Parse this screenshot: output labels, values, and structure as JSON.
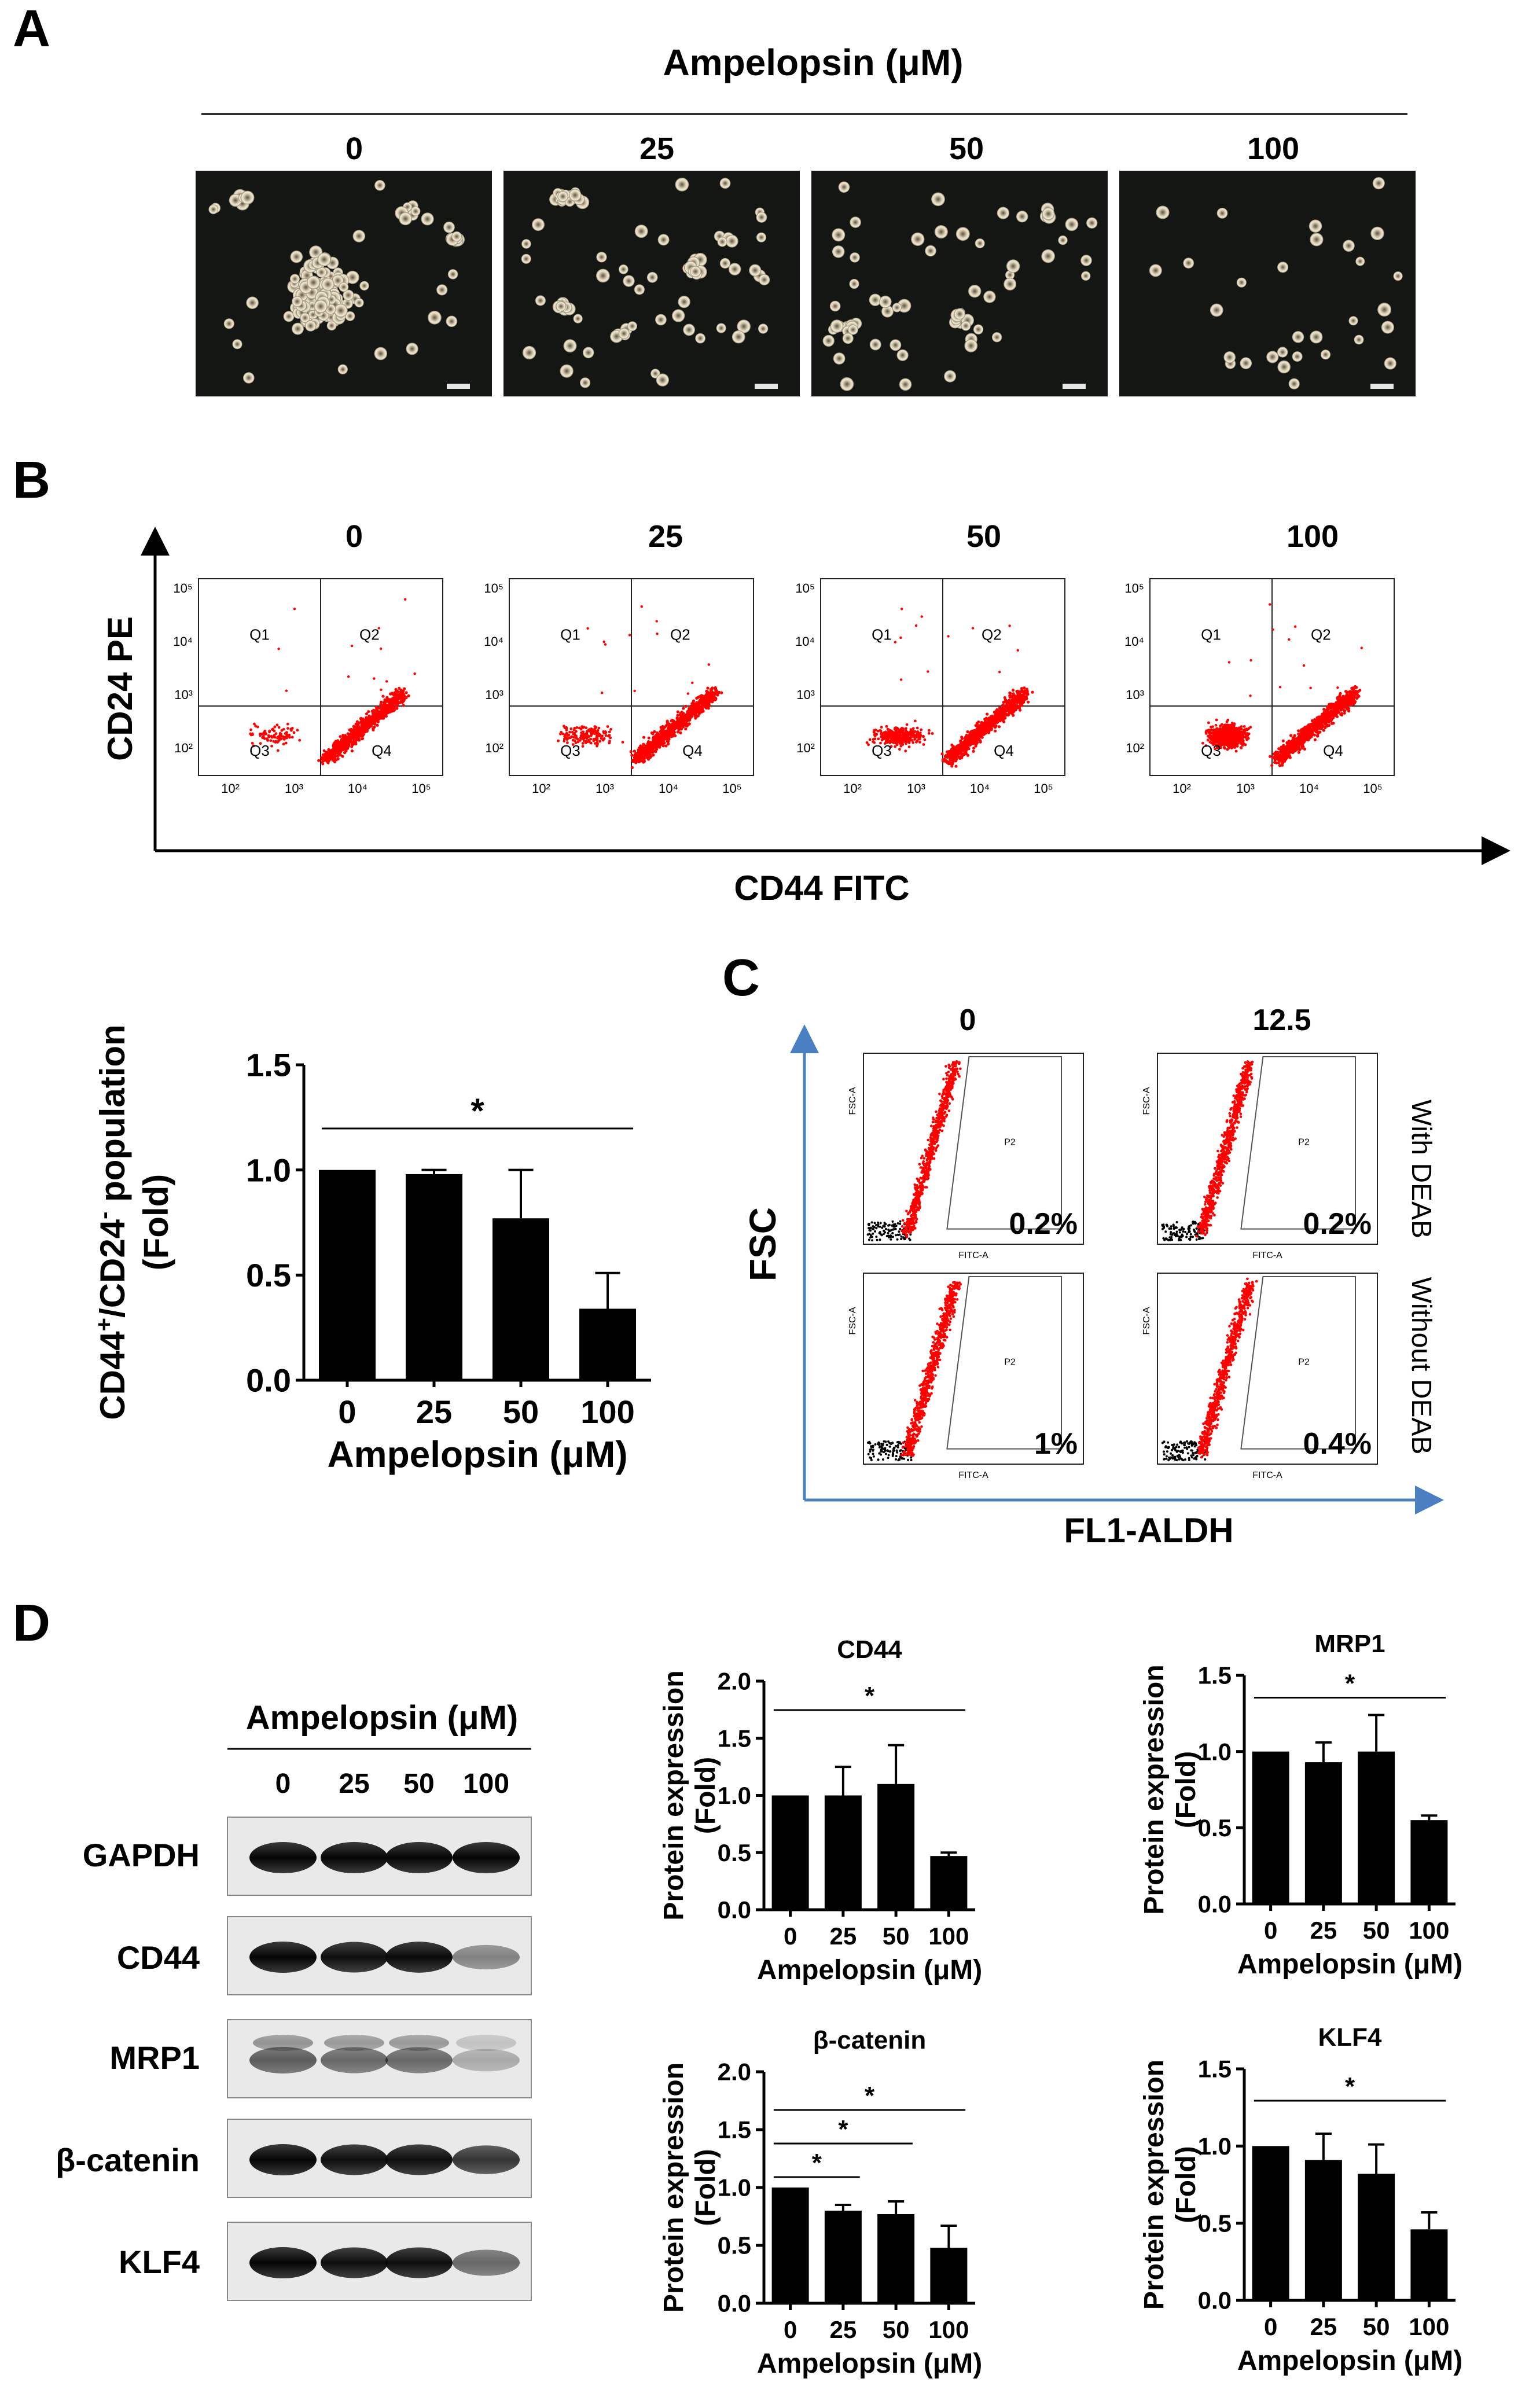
{
  "panel_letters": {
    "A": "A",
    "B": "B",
    "C": "C",
    "D": "D"
  },
  "treatment_title": "Ampelopsin (μM)",
  "concentrations": [
    "0",
    "25",
    "50",
    "100"
  ],
  "colors": {
    "dots": "#ff0000",
    "gate_label": "#1f6fb2",
    "arrow_blue": "#4a7fc1",
    "bars": "#000000"
  },
  "flow_b": {
    "y_axis_title": "CD24 PE",
    "x_axis_title": "CD44 FITC",
    "quadrants": [
      "Q1",
      "Q2",
      "Q3",
      "Q4"
    ],
    "x_ticks": [
      "10²",
      "10³",
      "10⁴",
      "10⁵"
    ],
    "y_ticks": [
      "10²",
      "10³",
      "10⁴",
      "10⁵"
    ]
  },
  "flow_c": {
    "columns": [
      "0",
      "12.5"
    ],
    "rows": [
      "With DEAB",
      "Without DEAB"
    ],
    "y_axis_title": "FSC",
    "x_axis_title": "FL1-ALDH",
    "gate_name": "P2",
    "small_x_label": "FITC-A",
    "small_y_label": "FSC-A",
    "percentages": [
      [
        "0.2%",
        "0.2%"
      ],
      [
        "1%",
        "0.4%"
      ]
    ]
  },
  "western": {
    "header": "Ampelopsin (μM)",
    "lanes": [
      "0",
      "25",
      "50",
      "100"
    ],
    "proteins": [
      "GAPDH",
      "CD44",
      "MRP1",
      "β-catenin",
      "KLF4"
    ]
  },
  "chart_data": [
    {
      "id": "cd44_cd24_population",
      "type": "bar",
      "title": "",
      "ylabel_parts": [
        "CD44",
        "+",
        "/CD24",
        "-",
        " population",
        "(Fold)"
      ],
      "xlabel": "Ampelopsin (μM)",
      "categories": [
        "0",
        "25",
        "50",
        "100"
      ],
      "values": [
        1.0,
        0.98,
        0.77,
        0.34
      ],
      "errors": [
        0.0,
        0.02,
        0.23,
        0.17
      ],
      "ylim": [
        0,
        1.5
      ],
      "yticks": [
        "0.0",
        "0.5",
        "1.0",
        "1.5"
      ],
      "significance": [
        {
          "from": "0",
          "to": "100",
          "label": "*"
        }
      ]
    },
    {
      "id": "cd44_expression",
      "type": "bar",
      "title": "CD44",
      "ylabel": "Protein expression (Fold)",
      "xlabel": "Ampelopsin (μM)",
      "categories": [
        "0",
        "25",
        "50",
        "100"
      ],
      "values": [
        1.0,
        1.0,
        1.1,
        0.47
      ],
      "errors": [
        0.0,
        0.25,
        0.34,
        0.03
      ],
      "ylim": [
        0,
        2.0
      ],
      "yticks": [
        "0.0",
        "0.5",
        "1.0",
        "1.5",
        "2.0"
      ],
      "significance": [
        {
          "from": "0",
          "to": "100",
          "label": "*"
        }
      ]
    },
    {
      "id": "mrp1_expression",
      "type": "bar",
      "title": "MRP1",
      "ylabel": "Protein expression (Fold)",
      "xlabel": "Ampelopsin (μM)",
      "categories": [
        "0",
        "25",
        "50",
        "100"
      ],
      "values": [
        1.0,
        0.93,
        1.0,
        0.55
      ],
      "errors": [
        0.0,
        0.13,
        0.24,
        0.03
      ],
      "ylim": [
        0,
        1.5
      ],
      "yticks": [
        "0.0",
        "0.5",
        "1.0",
        "1.5"
      ],
      "significance": [
        {
          "from": "0",
          "to": "100",
          "label": "*"
        }
      ]
    },
    {
      "id": "beta_catenin_expression",
      "type": "bar",
      "title": "β-catenin",
      "ylabel": "Protein expression (Fold)",
      "xlabel": "Ampelopsin (μM)",
      "categories": [
        "0",
        "25",
        "50",
        "100"
      ],
      "values": [
        1.0,
        0.8,
        0.77,
        0.48
      ],
      "errors": [
        0.0,
        0.05,
        0.11,
        0.19
      ],
      "ylim": [
        0,
        2.0
      ],
      "yticks": [
        "0.0",
        "0.5",
        "1.0",
        "1.5",
        "2.0"
      ],
      "significance": [
        {
          "from": "0",
          "to": "25",
          "label": "*"
        },
        {
          "from": "0",
          "to": "50",
          "label": "*"
        },
        {
          "from": "0",
          "to": "100",
          "label": "*"
        }
      ]
    },
    {
      "id": "klf4_expression",
      "type": "bar",
      "title": "KLF4",
      "ylabel": "Protein expression (Fold)",
      "xlabel": "Ampelopsin (μM)",
      "categories": [
        "0",
        "25",
        "50",
        "100"
      ],
      "values": [
        1.0,
        0.91,
        0.82,
        0.46
      ],
      "errors": [
        0.0,
        0.17,
        0.19,
        0.11
      ],
      "ylim": [
        0,
        1.5
      ],
      "yticks": [
        "0.0",
        "0.5",
        "1.0",
        "1.5"
      ],
      "significance": [
        {
          "from": "0",
          "to": "100",
          "label": "*"
        }
      ]
    }
  ]
}
